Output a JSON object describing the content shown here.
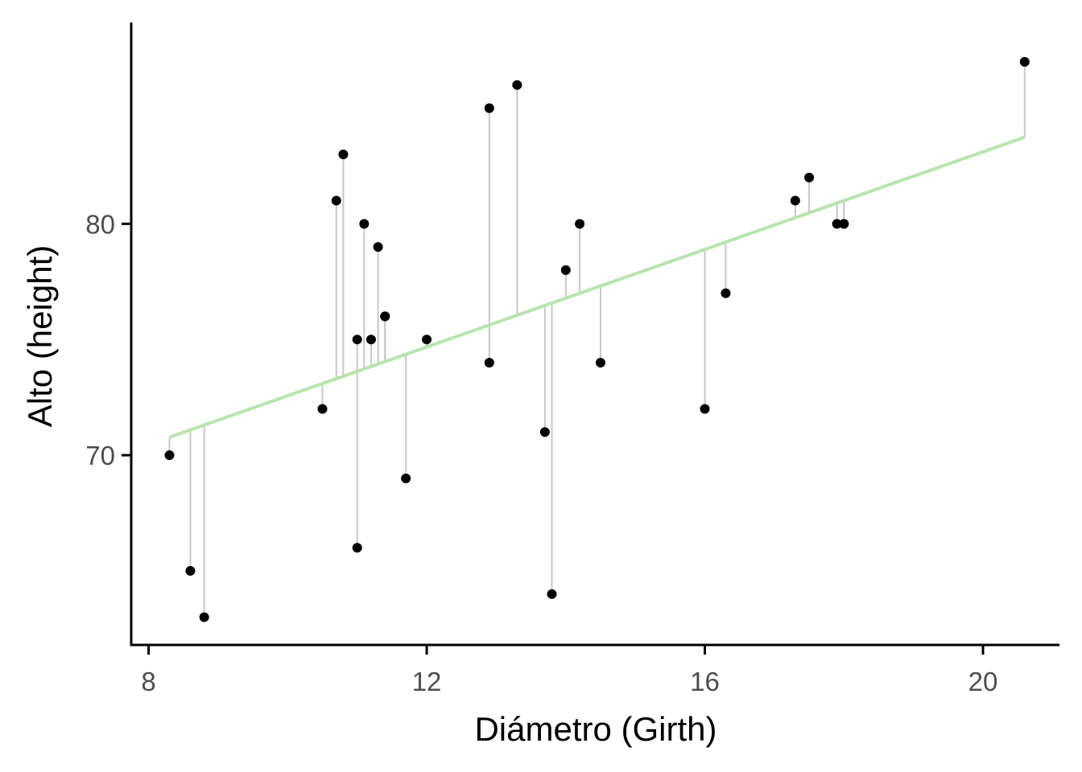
{
  "chart_data": {
    "type": "scatter",
    "xlabel": "Diámetro (Girth)",
    "ylabel": "Alto (height)",
    "xlim": [
      7.75,
      21.1
    ],
    "ylim": [
      61.8,
      88.7
    ],
    "x_ticks": [
      8,
      12,
      16,
      20
    ],
    "x_tick_labels": [
      "8",
      "12",
      "16",
      "20"
    ],
    "y_ticks": [
      70,
      80
    ],
    "y_tick_labels": [
      "70",
      "80"
    ],
    "grid": false,
    "legend": "none",
    "fit_line": {
      "intercept": 62.03,
      "slope": 1.054,
      "x_range": [
        8.3,
        20.6
      ],
      "color": "#b5e5ab"
    },
    "residual_color": "#c8c8c8",
    "point_color": "#000000",
    "points": [
      {
        "x": 8.3,
        "y": 70
      },
      {
        "x": 8.6,
        "y": 65
      },
      {
        "x": 8.8,
        "y": 63
      },
      {
        "x": 10.5,
        "y": 72
      },
      {
        "x": 10.7,
        "y": 81
      },
      {
        "x": 10.8,
        "y": 83
      },
      {
        "x": 11.0,
        "y": 66
      },
      {
        "x": 11.0,
        "y": 75
      },
      {
        "x": 11.1,
        "y": 80
      },
      {
        "x": 11.2,
        "y": 75
      },
      {
        "x": 11.3,
        "y": 79
      },
      {
        "x": 11.4,
        "y": 76
      },
      {
        "x": 11.4,
        "y": 76
      },
      {
        "x": 11.7,
        "y": 69
      },
      {
        "x": 12.0,
        "y": 75
      },
      {
        "x": 12.9,
        "y": 74
      },
      {
        "x": 12.9,
        "y": 85
      },
      {
        "x": 13.3,
        "y": 86
      },
      {
        "x": 13.7,
        "y": 71
      },
      {
        "x": 13.8,
        "y": 64
      },
      {
        "x": 14.0,
        "y": 78
      },
      {
        "x": 14.2,
        "y": 80
      },
      {
        "x": 14.5,
        "y": 74
      },
      {
        "x": 16.0,
        "y": 72
      },
      {
        "x": 16.3,
        "y": 77
      },
      {
        "x": 17.3,
        "y": 81
      },
      {
        "x": 17.5,
        "y": 82
      },
      {
        "x": 17.9,
        "y": 80
      },
      {
        "x": 18.0,
        "y": 80
      },
      {
        "x": 18.0,
        "y": 80
      },
      {
        "x": 20.6,
        "y": 87
      }
    ]
  }
}
